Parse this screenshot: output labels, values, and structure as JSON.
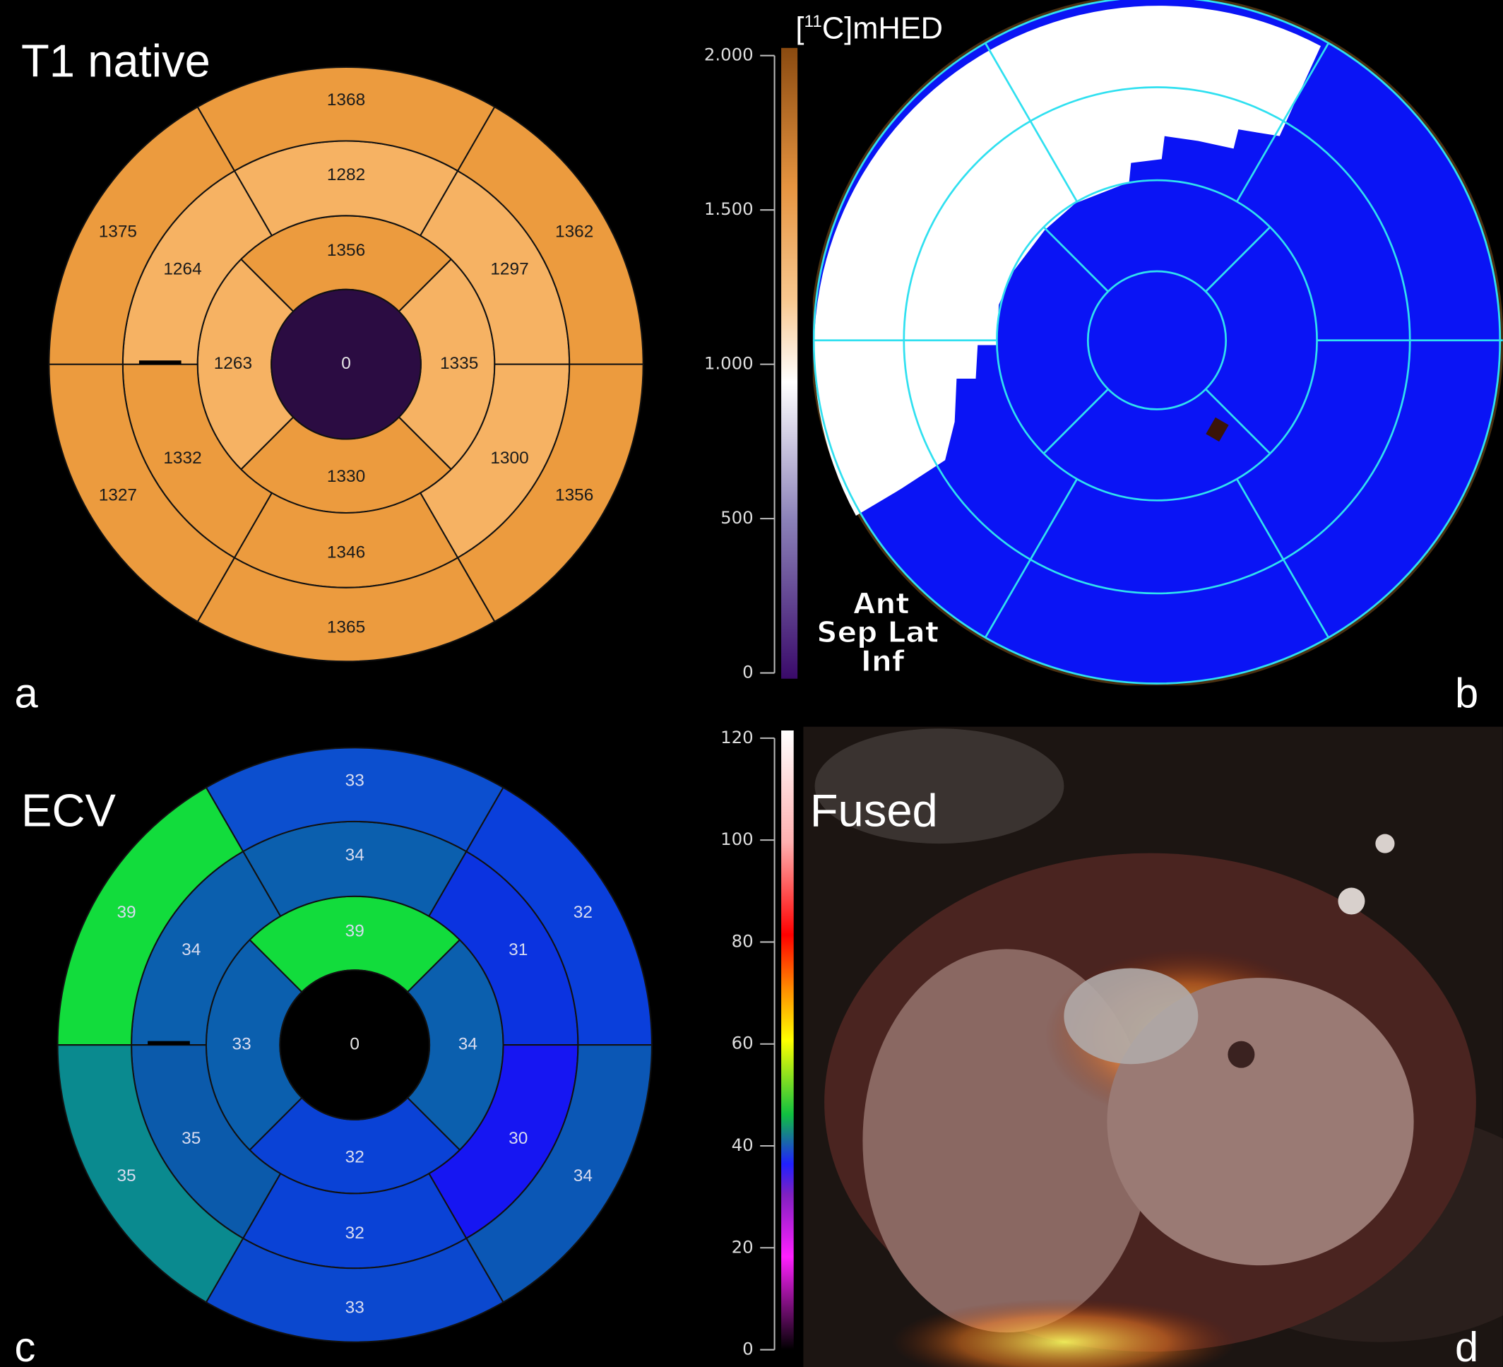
{
  "bullseyes": [
    {
      "letter": "a",
      "title": "T1 native",
      "apex": 0,
      "apical": [
        1356,
        1335,
        1330,
        1263
      ],
      "mid": [
        1282,
        1297,
        1300,
        1346,
        1332,
        1264
      ],
      "basal": [
        1368,
        1362,
        1356,
        1365,
        1327,
        1375
      ],
      "apex_color": "#2b0c42",
      "apical_colors": [
        "#ec9b3e",
        "#f6b263",
        "#ec9b3e",
        "#f6b263"
      ],
      "mid_colors": [
        "#f6b263",
        "#f6b263",
        "#f6b263",
        "#ec9b3e",
        "#ec9b3e",
        "#f6b263"
      ],
      "basal_colors": [
        "#ec9b3e",
        "#ec9b3e",
        "#ec9b3e",
        "#ec9b3e",
        "#ec9b3e",
        "#ec9b3e"
      ],
      "label_color": "#1a1a1a",
      "apex_label_color": "#e8e8e8"
    },
    {
      "letter": "c",
      "title": "ECV",
      "apex": 0,
      "apical": [
        39,
        34,
        32,
        33
      ],
      "mid": [
        34,
        31,
        30,
        32,
        35,
        34
      ],
      "basal": [
        33,
        32,
        34,
        33,
        35,
        39
      ],
      "apex_color": "#000000",
      "apical_colors": [
        "#12dc3c",
        "#0b5fae",
        "#0a42d6",
        "#0b5fae"
      ],
      "mid_colors": [
        "#0b5fae",
        "#0b33e0",
        "#1616f2",
        "#0a42d6",
        "#0b5aab",
        "#0b5fae"
      ],
      "basal_colors": [
        "#0c4fcf",
        "#0a3fdb",
        "#0b57b5",
        "#0b48cf",
        "#0a8a8f",
        "#12dc3c"
      ],
      "label_color": "#d8dcf0",
      "apex_label_color": "#e8e8e8"
    }
  ],
  "panel_b": {
    "letter": "b",
    "orientation": [
      "Ant",
      "Sep Lat",
      "Inf"
    ],
    "colorbar": {
      "title": {
        "pre": "[",
        "sup": "11",
        "post": "C]mHED"
      },
      "lim": [
        0,
        2000
      ],
      "ticks": [
        0,
        500,
        {
          "value": 1000,
          "label": "1.000"
        },
        {
          "value": 1500,
          "label": "1.500"
        },
        {
          "value": 2000,
          "label": "2.000"
        }
      ]
    }
  },
  "panel_d": {
    "letter": "d",
    "title": "Fused",
    "colorbar": {
      "lim": [
        0,
        120
      ],
      "ticks": [
        0,
        20,
        40,
        60,
        80,
        100,
        120
      ]
    }
  }
}
